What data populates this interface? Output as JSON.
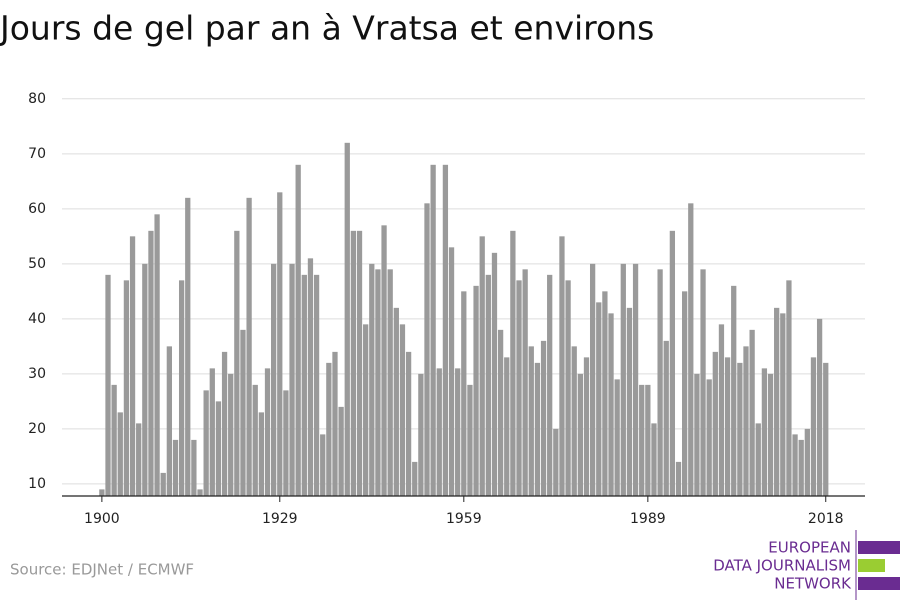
{
  "chart_data": {
    "type": "bar",
    "title": "Jours de gel par an à Vratsa et environs",
    "source": "Source: EDJNet / ECMWF",
    "logo": [
      "EUROPEAN",
      "DATA JOURNALISM",
      "NETWORK"
    ],
    "color": "#9a9a9a",
    "x": [
      1900,
      1901,
      1902,
      1903,
      1904,
      1905,
      1906,
      1907,
      1908,
      1909,
      1910,
      1911,
      1912,
      1913,
      1914,
      1915,
      1916,
      1917,
      1918,
      1919,
      1920,
      1921,
      1922,
      1923,
      1924,
      1925,
      1926,
      1927,
      1928,
      1929,
      1930,
      1931,
      1932,
      1933,
      1934,
      1935,
      1936,
      1937,
      1938,
      1939,
      1940,
      1941,
      1942,
      1943,
      1944,
      1945,
      1946,
      1947,
      1948,
      1949,
      1950,
      1951,
      1952,
      1953,
      1954,
      1955,
      1956,
      1957,
      1958,
      1959,
      1960,
      1961,
      1962,
      1963,
      1964,
      1965,
      1966,
      1967,
      1968,
      1969,
      1970,
      1971,
      1972,
      1973,
      1974,
      1975,
      1976,
      1977,
      1978,
      1979,
      1980,
      1981,
      1982,
      1983,
      1984,
      1985,
      1986,
      1987,
      1988,
      1989,
      1990,
      1991,
      1992,
      1993,
      1994,
      1995,
      1996,
      1997,
      1998,
      1999,
      2000,
      2001,
      2002,
      2003,
      2004,
      2005,
      2006,
      2007,
      2008,
      2009,
      2010,
      2011,
      2012,
      2013,
      2014,
      2015,
      2016,
      2017,
      2018
    ],
    "values": [
      9,
      48,
      28,
      23,
      47,
      55,
      21,
      50,
      56,
      59,
      12,
      35,
      18,
      47,
      62,
      18,
      9,
      27,
      31,
      25,
      34,
      30,
      56,
      38,
      62,
      28,
      23,
      31,
      50,
      63,
      27,
      50,
      68,
      48,
      51,
      48,
      19,
      32,
      34,
      24,
      72,
      56,
      56,
      39,
      50,
      49,
      57,
      49,
      42,
      39,
      34,
      14,
      30,
      61,
      68,
      31,
      68,
      53,
      31,
      45,
      28,
      46,
      55,
      48,
      52,
      38,
      33,
      56,
      47,
      49,
      35,
      32,
      36,
      48,
      20,
      55,
      47,
      35,
      30,
      33,
      50,
      43,
      45,
      41,
      29,
      50,
      42,
      50,
      28,
      28,
      21,
      49,
      36,
      56,
      14,
      45,
      61,
      30,
      49,
      29,
      34,
      39,
      33,
      46,
      32,
      35,
      38,
      21,
      31,
      30,
      42,
      41,
      47,
      19,
      18,
      20,
      33,
      40,
      32
    ],
    "xlim": [
      1893.5,
      2024.4
    ],
    "xticks": [
      1900,
      1929,
      1959,
      1989,
      2018
    ],
    "ylim": [
      7.8,
      81.6
    ],
    "yticks": [
      10,
      20,
      30,
      40,
      50,
      60,
      70,
      80
    ],
    "grid": true
  }
}
